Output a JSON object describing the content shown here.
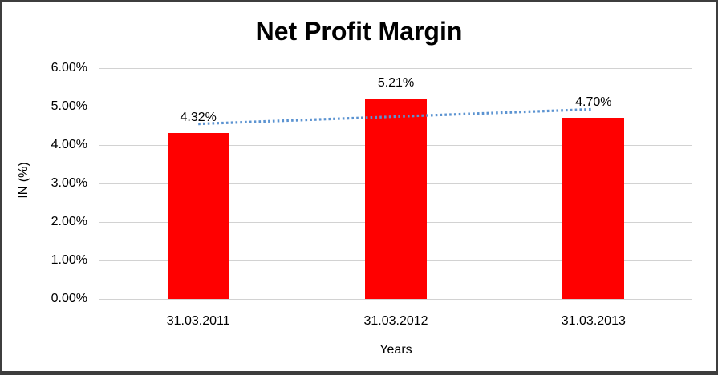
{
  "chart_data": {
    "type": "bar",
    "title": "Net Profit Margin",
    "xlabel": "Years",
    "ylabel": "IN (%)",
    "categories": [
      "31.03.2011",
      "31.03.2012",
      "31.03.2013"
    ],
    "values": [
      4.32,
      5.21,
      4.7
    ],
    "data_labels": [
      "4.32%",
      "5.21%",
      "4.70%"
    ],
    "ylim": [
      0,
      6
    ],
    "ytick_labels": [
      "0.00%",
      "1.00%",
      "2.00%",
      "3.00%",
      "4.00%",
      "5.00%",
      "6.00%"
    ],
    "grid": true,
    "legend": "none",
    "trendline": {
      "type": "linear",
      "style": "dotted",
      "start_value": 4.55,
      "end_value": 4.93
    },
    "colors": {
      "bar": "#FF0000",
      "trendline": "#5B93D1",
      "gridline": "#D2D2D2",
      "text": "#000000",
      "frame_border": "#3D3D3D",
      "background": "#FFFFFF"
    }
  }
}
